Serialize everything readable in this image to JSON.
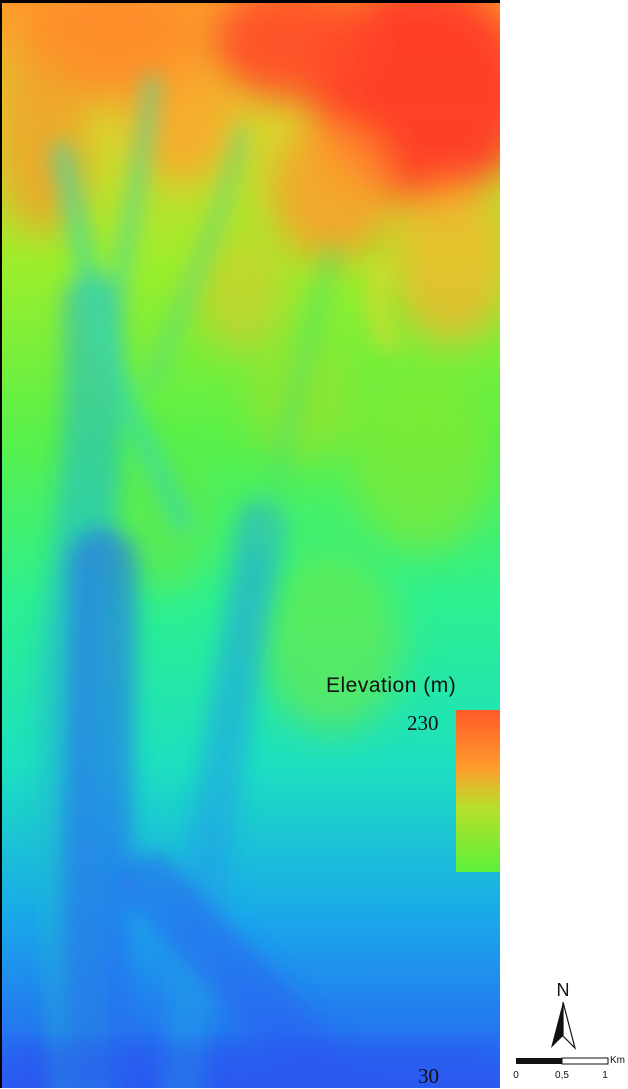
{
  "map": {
    "legend": {
      "title": "Elevation (m)",
      "max_label": "230",
      "min_label": "30",
      "value_max": 230,
      "value_min": 30,
      "ramp_colors": [
        "#ff3d26",
        "#ff7f28",
        "#ffb42c",
        "#8ef22c",
        "#35f06a",
        "#1ae6c8",
        "#1aa0f0",
        "#2a55f0"
      ]
    },
    "north_arrow": {
      "label": "N",
      "icon": "north-arrow-icon"
    },
    "scale_bar": {
      "unit": "Km",
      "ticks": [
        "0",
        "0,5",
        "1"
      ]
    }
  }
}
